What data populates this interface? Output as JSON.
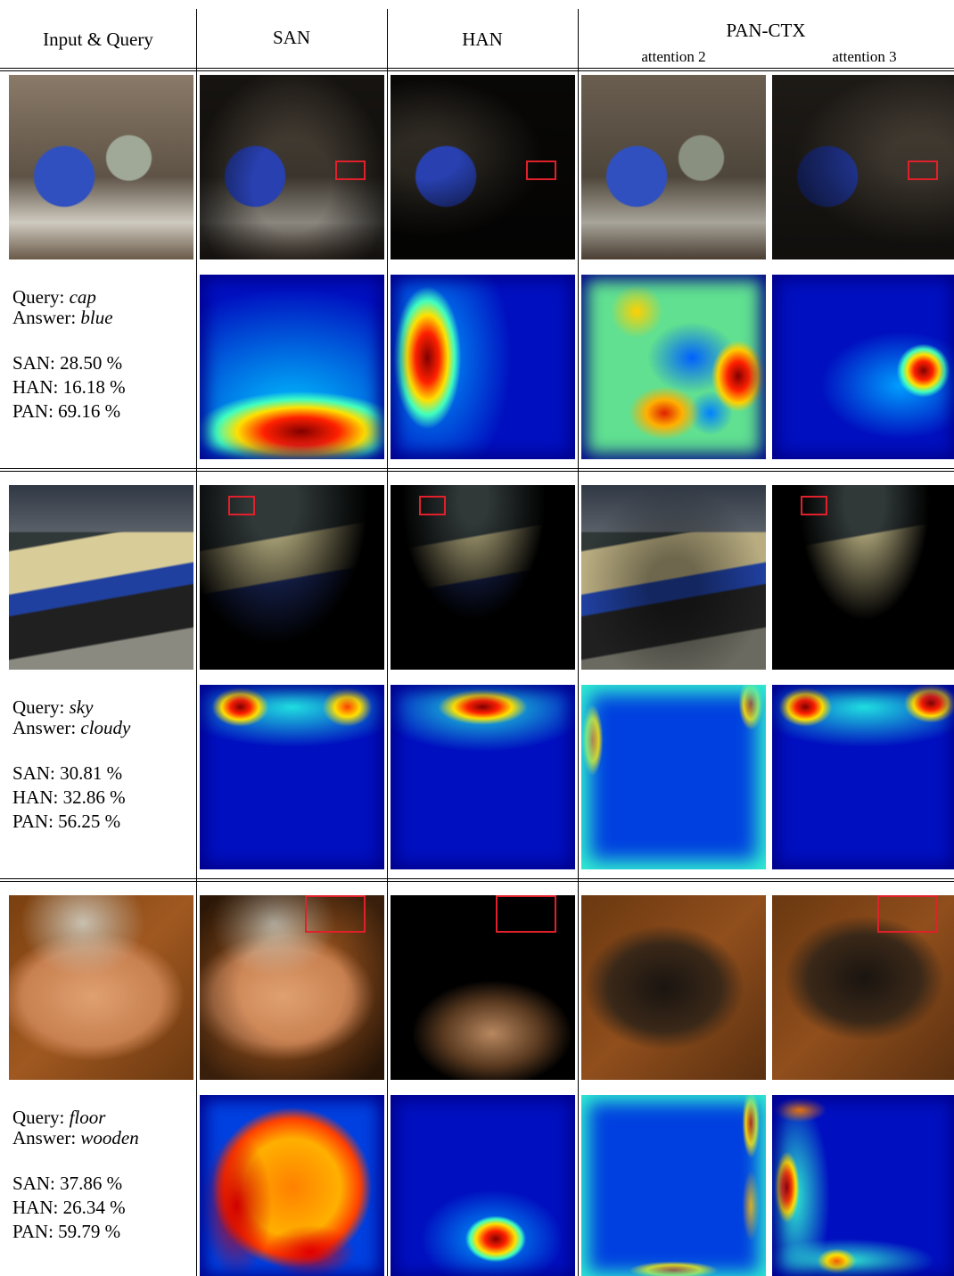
{
  "header": {
    "col_input": "Input & Query",
    "col_san": "SAN",
    "col_han": "HAN",
    "col_pan": "PAN-CTX",
    "sub_attention_2": "attention 2",
    "sub_attention_3": "attention 3"
  },
  "rows": [
    {
      "query_label": "Query:",
      "query": "cap",
      "answer_label": "Answer:",
      "answer": "blue",
      "scores": [
        "SAN: 28.50 %",
        "HAN: 16.18 %",
        "PAN: 69.16 %"
      ]
    },
    {
      "query_label": "Query:",
      "query": "sky",
      "answer_label": "Answer:",
      "answer": "cloudy",
      "scores": [
        "SAN: 30.81 %",
        "HAN: 32.86 %",
        "PAN: 56.25 %"
      ]
    },
    {
      "query_label": "Query:",
      "query": "floor",
      "answer_label": "Answer:",
      "answer": "wooden",
      "scores": [
        "SAN: 37.86 %",
        "HAN: 26.34 %",
        "PAN: 59.79 %"
      ]
    }
  ]
}
